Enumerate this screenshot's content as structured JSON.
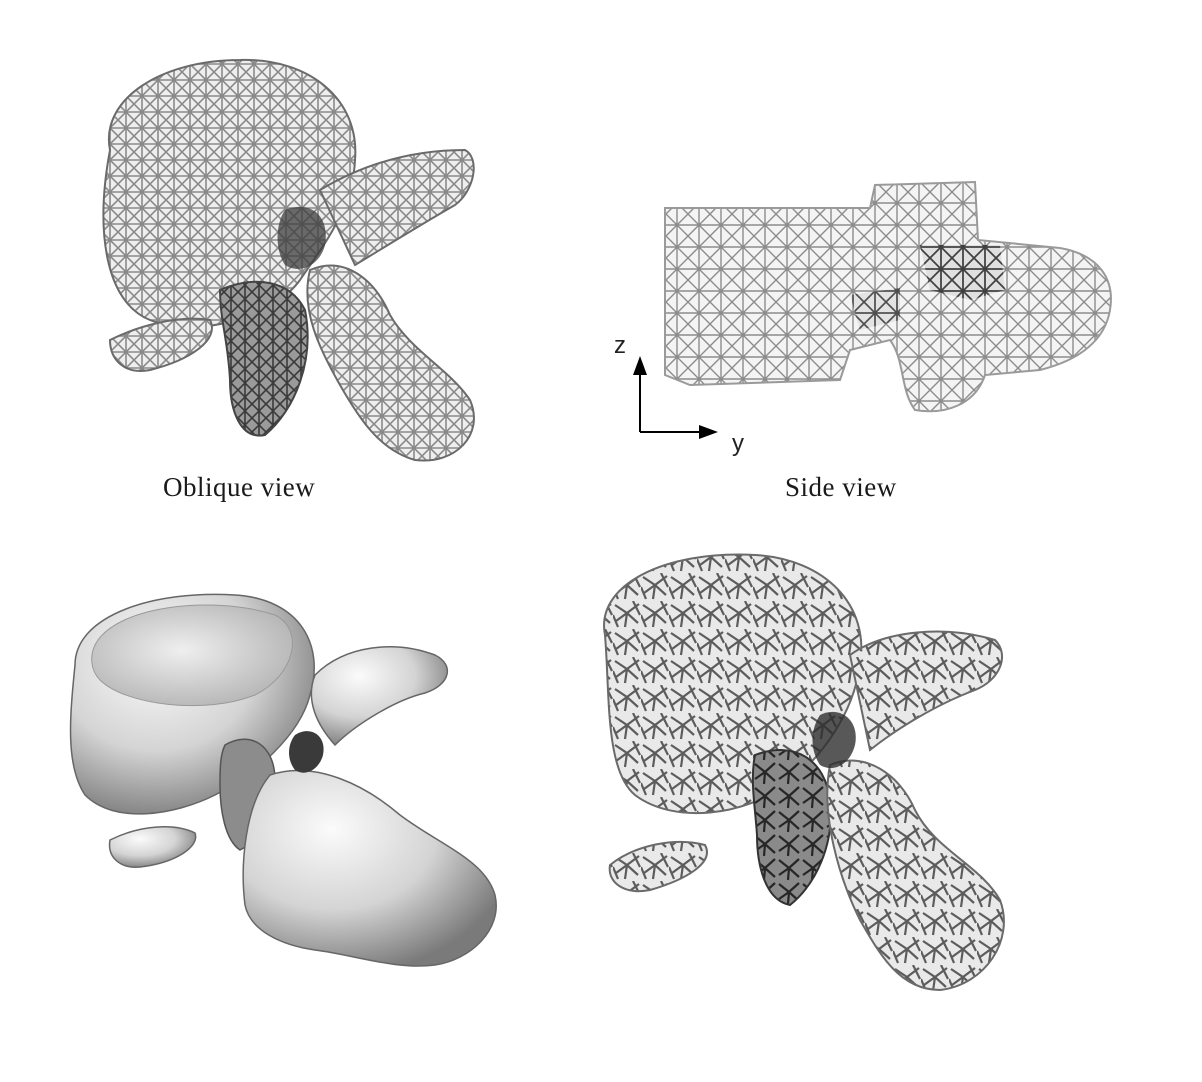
{
  "panels": {
    "oblique": {
      "caption": "Oblique view"
    },
    "side": {
      "caption": "Side view",
      "axis_vertical": "z",
      "axis_horizontal": "y"
    },
    "solid": {},
    "random": {}
  },
  "colors": {
    "lattice_light": "#c9c9c9",
    "lattice_mid": "#8f8f8f",
    "lattice_dark": "#3c3c3c",
    "solid_light": "#f2f2f2",
    "solid_mid": "#b9b9b9",
    "solid_dark": "#5a5a5a"
  }
}
